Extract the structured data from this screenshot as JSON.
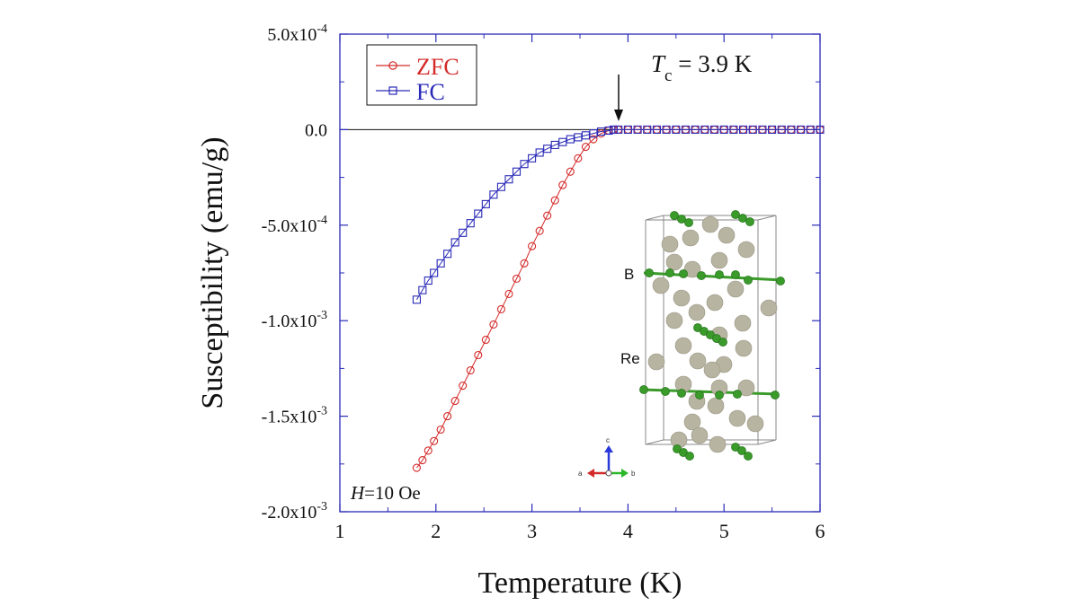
{
  "chart_data": {
    "type": "scatter",
    "xlabel": "Temperature (K)",
    "ylabel": "Susceptibility (emu/g)",
    "xlim": [
      1,
      6
    ],
    "ylim": [
      -0.002,
      0.0005
    ],
    "x_ticks": [
      1,
      2,
      3,
      4,
      5,
      6
    ],
    "y_ticks": [
      {
        "value": 0.0005,
        "mantissa": "5.0x10",
        "exp": "-4"
      },
      {
        "value": 0,
        "mantissa": "0.0",
        "exp": ""
      },
      {
        "value": -0.0005,
        "mantissa": "-5.0x10",
        "exp": "-4"
      },
      {
        "value": -0.001,
        "mantissa": "-1.0x10",
        "exp": "-3"
      },
      {
        "value": -0.0015,
        "mantissa": "-1.5x10",
        "exp": "-3"
      },
      {
        "value": -0.002,
        "mantissa": "-2.0x10",
        "exp": "-3"
      }
    ],
    "legend_position": "top-left",
    "series": [
      {
        "name": "ZFC",
        "color": "#d42a2a",
        "marker": "circle",
        "x": [
          1.8,
          1.86,
          1.92,
          1.98,
          2.05,
          2.12,
          2.2,
          2.28,
          2.36,
          2.44,
          2.52,
          2.6,
          2.68,
          2.76,
          2.84,
          2.92,
          3.0,
          3.08,
          3.16,
          3.24,
          3.32,
          3.4,
          3.48,
          3.56,
          3.64,
          3.72,
          3.8,
          3.85,
          3.9,
          4.0,
          4.1,
          4.2,
          4.3,
          4.4,
          4.5,
          4.6,
          4.7,
          4.8,
          4.9,
          5.0,
          5.1,
          5.2,
          5.3,
          5.4,
          5.5,
          5.6,
          5.7,
          5.8,
          5.9,
          6.0
        ],
        "y": [
          -0.00177,
          -0.00173,
          -0.00168,
          -0.00163,
          -0.00157,
          -0.0015,
          -0.00142,
          -0.00134,
          -0.00126,
          -0.00118,
          -0.0011,
          -0.00102,
          -0.00094,
          -0.00086,
          -0.00078,
          -0.0007,
          -0.00061,
          -0.00053,
          -0.00045,
          -0.00037,
          -0.00029,
          -0.00022,
          -0.00015,
          -9e-05,
          -5e-05,
          -2e-05,
          -5e-06,
          0,
          0,
          0,
          0,
          0,
          0,
          0,
          0,
          0,
          0,
          0,
          0,
          0,
          0,
          0,
          0,
          0,
          0,
          0,
          0,
          0,
          0,
          0
        ]
      },
      {
        "name": "FC",
        "color": "#2a2ab8",
        "marker": "square",
        "x": [
          1.8,
          1.86,
          1.92,
          1.98,
          2.05,
          2.12,
          2.2,
          2.28,
          2.36,
          2.44,
          2.52,
          2.6,
          2.68,
          2.76,
          2.84,
          2.92,
          3.0,
          3.08,
          3.16,
          3.24,
          3.32,
          3.4,
          3.48,
          3.56,
          3.64,
          3.72,
          3.8,
          3.85,
          3.9,
          4.0,
          4.1,
          4.2,
          4.3,
          4.4,
          4.5,
          4.6,
          4.7,
          4.8,
          4.9,
          5.0,
          5.1,
          5.2,
          5.3,
          5.4,
          5.5,
          5.6,
          5.7,
          5.8,
          5.9,
          6.0
        ],
        "y": [
          -0.00089,
          -0.00084,
          -0.00079,
          -0.00075,
          -0.0007,
          -0.00065,
          -0.00059,
          -0.00054,
          -0.00049,
          -0.00044,
          -0.00039,
          -0.00034,
          -0.0003,
          -0.00026,
          -0.00022,
          -0.00018,
          -0.00015,
          -0.00012,
          -0.0001,
          -8e-05,
          -6.5e-05,
          -5e-05,
          -4e-05,
          -3e-05,
          -2e-05,
          -1e-05,
          -5e-06,
          0,
          0,
          0,
          0,
          0,
          0,
          0,
          0,
          0,
          0,
          0,
          0,
          0,
          0,
          0,
          0,
          0,
          0,
          0,
          0,
          0,
          0,
          0
        ]
      }
    ],
    "annotations": {
      "tc_symbol": "T",
      "tc_subscript": "c",
      "tc_value": " = 3.9 K",
      "tc_arrow_x": 3.9,
      "field_symbol": "H",
      "field_value": "=10 Oe"
    },
    "inset": {
      "label_boron": "B",
      "label_rhenium": "Re",
      "axis_a": "a",
      "axis_b": "b",
      "axis_c": "c",
      "boron_color": "#3a9a2a",
      "rhenium_color": "#b8b4a2"
    }
  }
}
